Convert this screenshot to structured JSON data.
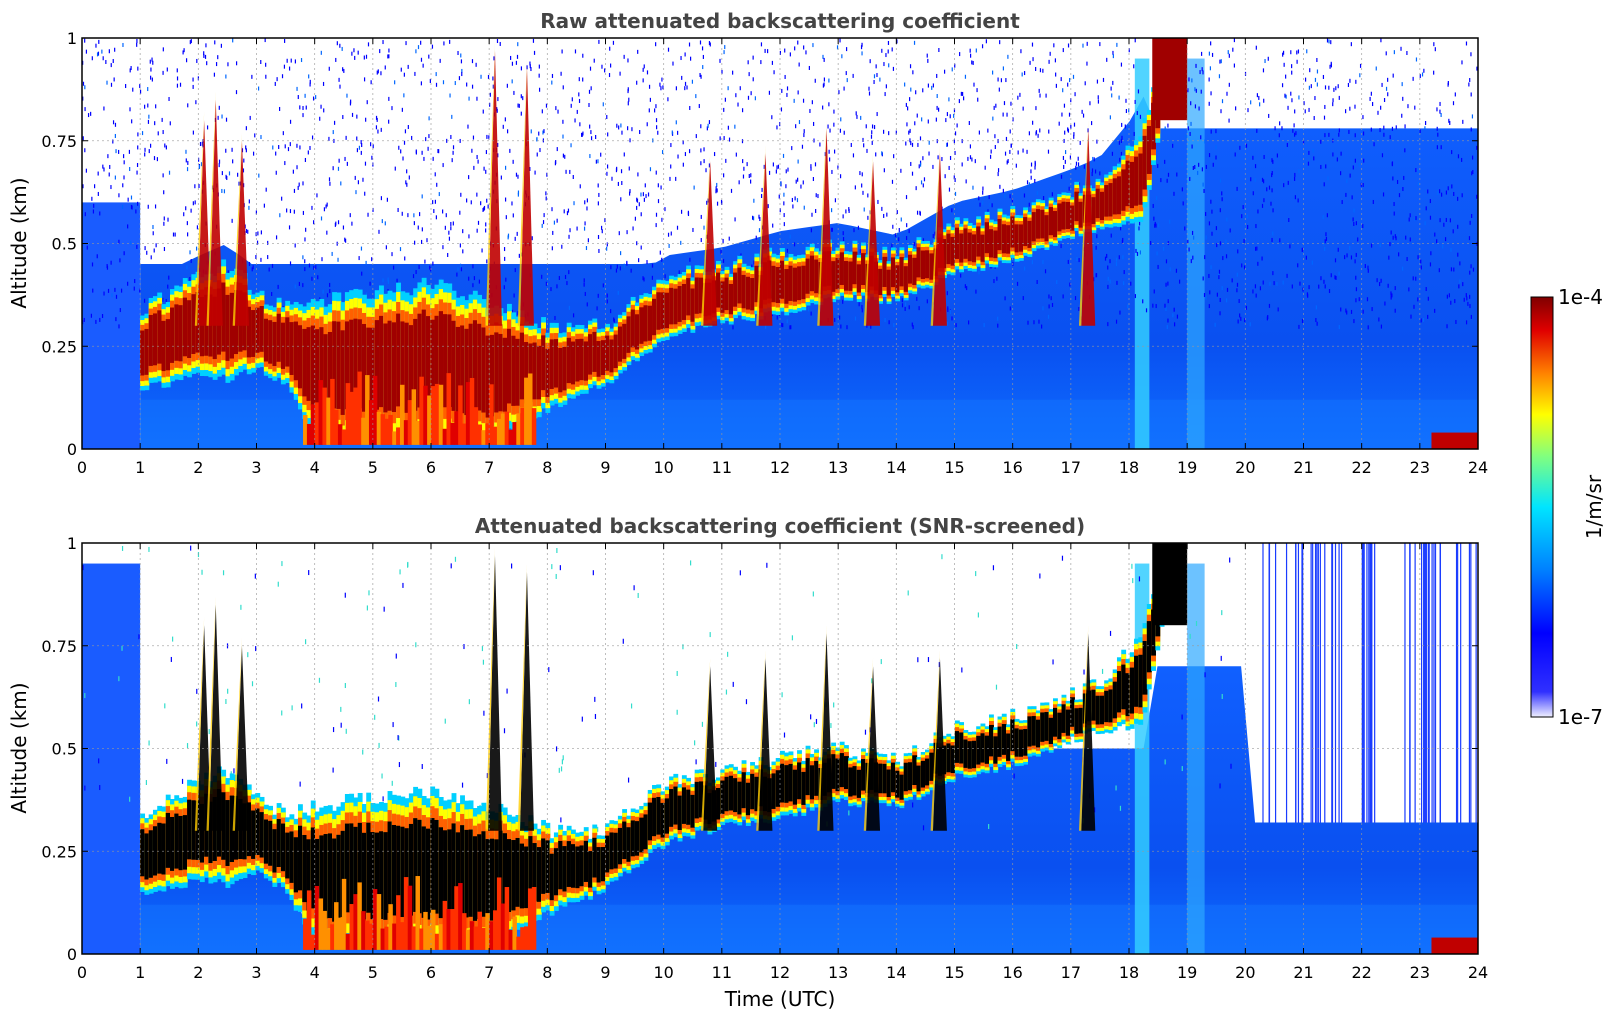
{
  "chart_data": [
    {
      "type": "heatmap",
      "title": "Raw attenuated backscattering coefficient",
      "xlabel": "",
      "ylabel": "Altitude (km)",
      "xlim": [
        0,
        24
      ],
      "ylim": [
        0,
        1
      ],
      "x_ticks": [
        "0",
        "1",
        "2",
        "3",
        "4",
        "5",
        "6",
        "7",
        "8",
        "9",
        "10",
        "11",
        "12",
        "13",
        "14",
        "15",
        "16",
        "17",
        "18",
        "19",
        "20",
        "21",
        "22",
        "23",
        "24"
      ],
      "y_ticks": [
        "0",
        "0.25",
        "0.5",
        "0.75",
        "1"
      ],
      "grid": true,
      "layer_profile": [
        {
          "t": 1.0,
          "top": 0.34,
          "base": 0.15
        },
        {
          "t": 1.5,
          "top": 0.38,
          "base": 0.16
        },
        {
          "t": 2.0,
          "top": 0.42,
          "base": 0.18
        },
        {
          "t": 2.5,
          "top": 0.45,
          "base": 0.17
        },
        {
          "t": 3.0,
          "top": 0.38,
          "base": 0.2
        },
        {
          "t": 3.5,
          "top": 0.34,
          "base": 0.15
        },
        {
          "t": 4.0,
          "top": 0.36,
          "base": 0.02
        },
        {
          "t": 5.0,
          "top": 0.38,
          "base": 0.02
        },
        {
          "t": 6.0,
          "top": 0.4,
          "base": 0.02
        },
        {
          "t": 7.0,
          "top": 0.36,
          "base": 0.02
        },
        {
          "t": 8.0,
          "top": 0.3,
          "base": 0.1
        },
        {
          "t": 9.0,
          "top": 0.3,
          "base": 0.16
        },
        {
          "t": 10.0,
          "top": 0.42,
          "base": 0.27
        },
        {
          "t": 11.0,
          "top": 0.44,
          "base": 0.31
        },
        {
          "t": 12.0,
          "top": 0.48,
          "base": 0.33
        },
        {
          "t": 13.0,
          "top": 0.5,
          "base": 0.37
        },
        {
          "t": 14.0,
          "top": 0.47,
          "base": 0.36
        },
        {
          "t": 15.0,
          "top": 0.55,
          "base": 0.43
        },
        {
          "t": 16.0,
          "top": 0.58,
          "base": 0.46
        },
        {
          "t": 17.0,
          "top": 0.63,
          "base": 0.52
        },
        {
          "t": 17.5,
          "top": 0.66,
          "base": 0.54
        },
        {
          "t": 18.2,
          "top": 0.78,
          "base": 0.56
        },
        {
          "t": 18.6,
          "top": 1.0,
          "base": 0.85
        }
      ]
    },
    {
      "type": "heatmap",
      "title": "Attenuated backscattering coefficient (SNR-screened)",
      "xlabel": "Time (UTC)",
      "ylabel": "Altitude (km)",
      "xlim": [
        0,
        24
      ],
      "ylim": [
        0,
        1
      ],
      "x_ticks": [
        "0",
        "1",
        "2",
        "3",
        "4",
        "5",
        "6",
        "7",
        "8",
        "9",
        "10",
        "11",
        "12",
        "13",
        "14",
        "15",
        "16",
        "17",
        "18",
        "19",
        "20",
        "21",
        "22",
        "23",
        "24"
      ],
      "y_ticks": [
        "0",
        "0.25",
        "0.5",
        "0.75",
        "1"
      ],
      "grid": true,
      "screened_top_after_20": 0.32
    }
  ],
  "colorbar": {
    "label": "1/m/sr",
    "max_label": "1e-4",
    "min_label": "1e-7",
    "scale": "log",
    "colormap": "jet",
    "colors": [
      "#f0f0ff",
      "#0000ff",
      "#0088ff",
      "#00e5ff",
      "#ffff00",
      "#ff8000",
      "#e00000",
      "#800000"
    ]
  }
}
